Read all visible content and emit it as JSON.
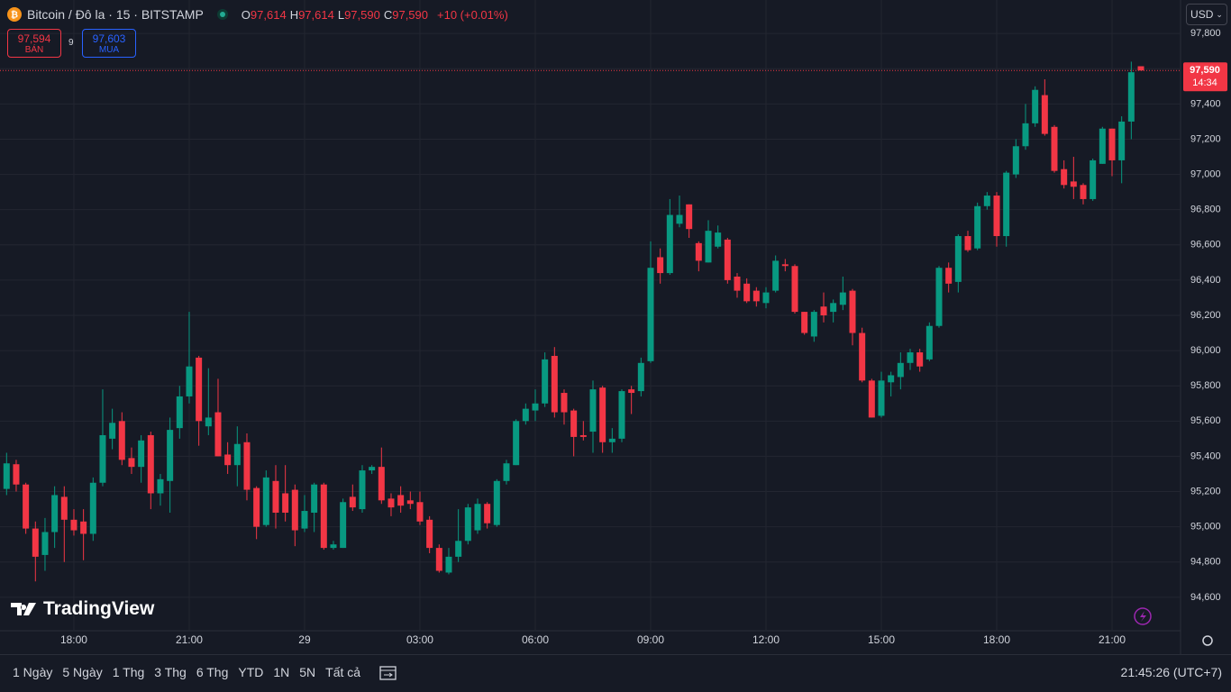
{
  "header": {
    "symbol": "Bitcoin / Đô la · 15 · BITSTAMP",
    "ohlc": [
      {
        "label": "O",
        "value": "97,614"
      },
      {
        "label": "H",
        "value": "97,614"
      },
      {
        "label": "L",
        "value": "97,590"
      },
      {
        "label": "C",
        "value": "97,590"
      }
    ],
    "change": "+10 (+0.01%)",
    "currency": "USD"
  },
  "trade": {
    "sell_price": "97,594",
    "sell_label": "BÁN",
    "spread": "9",
    "buy_price": "97,603",
    "buy_label": "MUA"
  },
  "logo": "TradingView",
  "toolbar": {
    "ranges": [
      "1 Ngày",
      "5 Ngày",
      "1 Thg",
      "3 Thg",
      "6 Thg",
      "YTD",
      "1N",
      "5N",
      "Tất cả"
    ],
    "clock": "21:45:26 (UTC+7)"
  },
  "chart_data": {
    "type": "candlestick",
    "up_color": "#089981",
    "down_color": "#f23645",
    "grid": true,
    "last_price": {
      "value": 97590,
      "label": "97,590"
    },
    "countdown": "14:34",
    "ylim": [
      94410,
      97990
    ],
    "yticks": [
      {
        "value": 94600,
        "label": "94,600"
      },
      {
        "value": 94800,
        "label": "94,800"
      },
      {
        "value": 95000,
        "label": "95,000"
      },
      {
        "value": 95200,
        "label": "95,200"
      },
      {
        "value": 95400,
        "label": "95,400"
      },
      {
        "value": 95600,
        "label": "95,600"
      },
      {
        "value": 95800,
        "label": "95,800"
      },
      {
        "value": 96000,
        "label": "96,000"
      },
      {
        "value": 96200,
        "label": "96,200"
      },
      {
        "value": 96400,
        "label": "96,400"
      },
      {
        "value": 96600,
        "label": "96,600"
      },
      {
        "value": 96800,
        "label": "96,800"
      },
      {
        "value": 97000,
        "label": "97,000"
      },
      {
        "value": 97200,
        "label": "97,200"
      },
      {
        "value": 97400,
        "label": "97,400"
      },
      {
        "value": 97600,
        "label": "97,600"
      },
      {
        "value": 97800,
        "label": "97,800"
      }
    ],
    "categories": [
      null,
      null,
      null,
      null,
      null,
      null,
      null,
      "18:00",
      null,
      null,
      null,
      null,
      null,
      null,
      null,
      null,
      null,
      null,
      null,
      "21:00",
      null,
      null,
      null,
      null,
      null,
      null,
      null,
      null,
      null,
      null,
      null,
      "29",
      null,
      null,
      null,
      null,
      null,
      null,
      null,
      null,
      null,
      null,
      null,
      "03:00",
      null,
      null,
      null,
      null,
      null,
      null,
      null,
      null,
      null,
      null,
      null,
      "06:00",
      null,
      null,
      null,
      null,
      null,
      null,
      null,
      null,
      null,
      null,
      null,
      "09:00",
      null,
      null,
      null,
      null,
      null,
      null,
      null,
      null,
      null,
      null,
      null,
      "12:00",
      null,
      null,
      null,
      null,
      null,
      null,
      null,
      null,
      null,
      null,
      null,
      "15:00",
      null,
      null,
      null,
      null,
      null,
      null,
      null,
      null,
      null,
      null,
      null,
      "18:00",
      null,
      null,
      null,
      null,
      null,
      null,
      null,
      null,
      null,
      null,
      null,
      "21:00",
      null,
      null,
      null
    ],
    "open": [
      95215,
      95355,
      95240,
      94990,
      94840,
      94970,
      95170,
      95040,
      95030,
      94960,
      95250,
      95500,
      95600,
      95390,
      95340,
      95520,
      95190,
      95260,
      95560,
      95740,
      95960,
      95570,
      95650,
      95410,
      95350,
      95480,
      95220,
      95010,
      95260,
      95190,
      95210,
      94990,
      95080,
      95240,
      94880,
      94880,
      95170,
      95100,
      95320,
      95340,
      95160,
      95180,
      95150,
      95140,
      95040,
      94880,
      94740,
      94830,
      94920,
      94980,
      95130,
      95010,
      95260,
      95350,
      95600,
      95660,
      95700,
      95970,
      95760,
      95660,
      95520,
      95540,
      95790,
      95480,
      95500,
      95780,
      95770,
      95940,
      96530,
      96440,
      96720,
      96830,
      96610,
      96500,
      96590,
      96630,
      96420,
      96380,
      96340,
      96270,
      96340,
      96490,
      96480,
      96220,
      96080,
      96250,
      96220,
      96260,
      96340,
      96100,
      95830,
      95630,
      95820,
      95850,
      95930,
      95990,
      95950,
      96140,
      96470,
      96390,
      96650,
      96580,
      96820,
      96880,
      96650,
      97000,
      97160,
      97290,
      97450,
      97270,
      97030,
      96960,
      96940,
      96860,
      97060,
      97260,
      97080,
      97300,
      97614
    ],
    "high": [
      95420,
      95380,
      95250,
      95030,
      95050,
      95230,
      95230,
      95100,
      95100,
      95280,
      95780,
      95670,
      95650,
      95450,
      95520,
      95540,
      95300,
      95620,
      95800,
      96220,
      95970,
      95900,
      95840,
      95480,
      95570,
      95530,
      95230,
      95320,
      95350,
      95350,
      95240,
      95180,
      95250,
      95250,
      94920,
      95160,
      95240,
      95350,
      95350,
      95450,
      95190,
      95230,
      95200,
      95200,
      95060,
      94900,
      94880,
      95100,
      95130,
      95160,
      95140,
      95270,
      95380,
      95610,
      95700,
      95780,
      95990,
      96020,
      95780,
      95670,
      95600,
      95830,
      95800,
      95560,
      95780,
      95800,
      95960,
      96620,
      96580,
      96860,
      96880,
      96830,
      96620,
      96740,
      96710,
      96640,
      96440,
      96410,
      96360,
      96360,
      96540,
      96520,
      96490,
      96220,
      96230,
      96330,
      96290,
      96420,
      96350,
      96130,
      95840,
      95880,
      95880,
      95990,
      96010,
      96010,
      96160,
      96480,
      96500,
      96660,
      96680,
      96840,
      96900,
      96900,
      97020,
      97200,
      97400,
      97500,
      97540,
      97280,
      97080,
      97100,
      96950,
      97090,
      97270,
      97260,
      97330,
      97640,
      97614
    ],
    "low": [
      95180,
      95200,
      94960,
      94690,
      94750,
      94880,
      94800,
      94950,
      94810,
      94920,
      95230,
      95440,
      95350,
      95300,
      95250,
      95100,
      95120,
      95080,
      95500,
      95700,
      95460,
      95520,
      95400,
      95300,
      95230,
      95150,
      94930,
      95000,
      94990,
      95030,
      94890,
      94970,
      94970,
      94870,
      94870,
      94880,
      95090,
      95080,
      95300,
      95130,
      95060,
      95080,
      95100,
      95010,
      94850,
      94740,
      94730,
      94800,
      94900,
      94960,
      94990,
      95000,
      95240,
      95350,
      95580,
      95600,
      95680,
      95620,
      95580,
      95400,
      95490,
      95420,
      95420,
      95420,
      95480,
      95640,
      95740,
      95930,
      96380,
      96430,
      96700,
      96640,
      96450,
      96500,
      96580,
      96380,
      96300,
      96270,
      96250,
      96240,
      96330,
      96450,
      96210,
      96090,
      96050,
      96160,
      96160,
      96230,
      96030,
      95820,
      95620,
      95620,
      95740,
      95780,
      95890,
      95880,
      95940,
      96130,
      96330,
      96330,
      96560,
      96570,
      96800,
      96590,
      96590,
      96980,
      97140,
      97270,
      97220,
      97010,
      96920,
      96860,
      96830,
      96850,
      97060,
      96990,
      96950,
      97200,
      97590
    ],
    "close": [
      95360,
      95240,
      94990,
      94830,
      94970,
      95180,
      95040,
      94980,
      94960,
      95250,
      95520,
      95590,
      95380,
      95340,
      95490,
      95190,
      95270,
      95550,
      95740,
      95910,
      95600,
      95620,
      95400,
      95350,
      95470,
      95210,
      95000,
      95280,
      95080,
      95080,
      94980,
      95090,
      95240,
      94880,
      94900,
      95140,
      95110,
      95320,
      95340,
      95150,
      95110,
      95120,
      95130,
      95030,
      94880,
      94750,
      94830,
      94920,
      95110,
      95130,
      95020,
      95260,
      95360,
      95600,
      95670,
      95700,
      95950,
      95650,
      95650,
      95510,
      95510,
      95780,
      95480,
      95500,
      95770,
      95760,
      95930,
      96470,
      96440,
      96770,
      96770,
      96690,
      96510,
      96680,
      96670,
      96400,
      96340,
      96280,
      96280,
      96330,
      96510,
      96480,
      96220,
      96100,
      96220,
      96200,
      96270,
      96330,
      96100,
      95830,
      95620,
      95830,
      95860,
      95930,
      95990,
      95910,
      96140,
      96470,
      96380,
      96650,
      96570,
      96820,
      96880,
      96650,
      97010,
      97160,
      97290,
      97480,
      97230,
      97020,
      96940,
      96930,
      96860,
      97080,
      97260,
      97080,
      97300,
      97580,
      97590
    ]
  }
}
